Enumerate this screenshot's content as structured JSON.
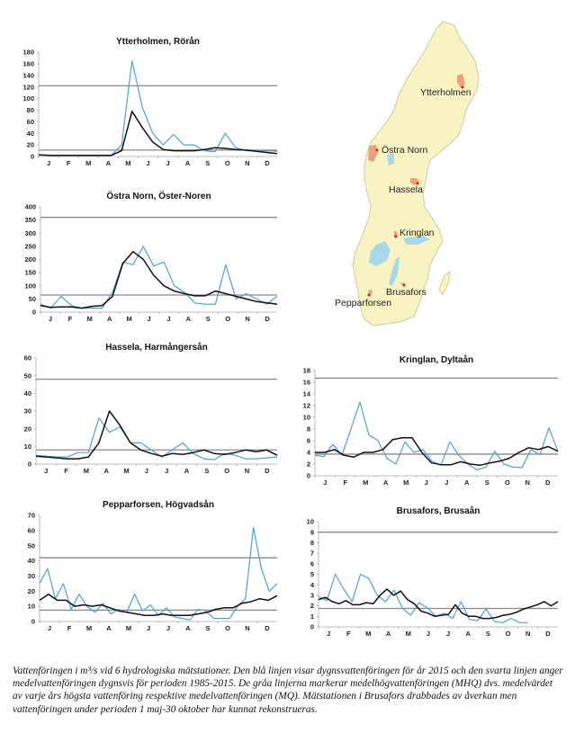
{
  "caption": "Vattenföringen i m³/s vid 6 hydrologiska mätstationer. Den blå linjen visar dygnsvattenföringen för år 2015 och den svarta linjen anger medelvattenföringen dygnsvis för perioden 1985-2015. De gråa linjerna markerar medelhögvattenföringen (MHQ) dvs. medelvärdet av varje års högsta vattenföring respektive medelvattenföringen (MQ). Mätstationen i Brusafors drabbades av åverkan men vattenföringen under perioden 1 maj-30 oktober har kunnat rekonstrueras.",
  "map": {
    "colors": {
      "land": "#f7f3c2",
      "lake": "#a8d8ea",
      "catchment": "#e9a27c",
      "station": "#cc2222",
      "border": "#cfcaa0"
    },
    "stations": [
      {
        "name": "Ytterholmen"
      },
      {
        "name": "Östra Norn"
      },
      {
        "name": "Hassela"
      },
      {
        "name": "Kringlan"
      },
      {
        "name": "Brusafors"
      },
      {
        "name": "Pepparforsen"
      }
    ]
  },
  "colors": {
    "series_2015": "#4fa3cf",
    "series_mean": "#111111",
    "reference": "#8a8a8a",
    "axis": "#aaaaaa"
  },
  "chart_data": [
    {
      "type": "line",
      "title": "Ytterholmen, Rörån",
      "xlabel": "",
      "ylabel": "m³/s",
      "categories": [
        "J",
        "F",
        "M",
        "A",
        "M",
        "J",
        "J",
        "A",
        "S",
        "O",
        "N",
        "D"
      ],
      "yticks": [
        0,
        20,
        40,
        60,
        80,
        100,
        120,
        140,
        160,
        180
      ],
      "ylim": [
        0,
        180
      ],
      "reference_lines": {
        "MHQ": 122,
        "MQ": 11
      },
      "x_unit": "half-month index (0-23)",
      "series": [
        {
          "name": "2015",
          "values": [
            3,
            2,
            2,
            2,
            2,
            2,
            2,
            2,
            20,
            165,
            85,
            40,
            20,
            38,
            20,
            20,
            10,
            8,
            40,
            15,
            10,
            10,
            10,
            9
          ]
        },
        {
          "name": "Medel 1985-2015",
          "values": [
            3,
            2,
            2,
            2,
            2,
            2,
            2,
            2,
            10,
            78,
            50,
            25,
            12,
            10,
            10,
            10,
            12,
            15,
            14,
            12,
            11,
            9,
            7,
            5
          ]
        }
      ]
    },
    {
      "type": "line",
      "title": "Östra Norn, Öster-Noren",
      "xlabel": "",
      "ylabel": "m³/s",
      "categories": [
        "J",
        "F",
        "M",
        "A",
        "M",
        "J",
        "J",
        "A",
        "S",
        "O",
        "N",
        "D"
      ],
      "yticks": [
        0,
        50,
        100,
        150,
        200,
        250,
        300,
        350,
        400
      ],
      "ylim": [
        0,
        400
      ],
      "reference_lines": {
        "MHQ": 360,
        "MQ": 65
      },
      "series": [
        {
          "name": "2015",
          "values": [
            30,
            15,
            60,
            25,
            15,
            15,
            15,
            75,
            190,
            180,
            250,
            175,
            190,
            100,
            75,
            35,
            30,
            30,
            180,
            50,
            70,
            50,
            30,
            60
          ]
        },
        {
          "name": "Medel 1985-2015",
          "values": [
            25,
            18,
            20,
            20,
            15,
            22,
            25,
            60,
            185,
            230,
            200,
            140,
            100,
            80,
            70,
            62,
            62,
            80,
            70,
            60,
            50,
            40,
            35,
            30
          ]
        }
      ]
    },
    {
      "type": "line",
      "title": "Hassela, Harmångersån",
      "xlabel": "",
      "ylabel": "m³/s",
      "categories": [
        "J",
        "F",
        "M",
        "A",
        "M",
        "J",
        "J",
        "A",
        "S",
        "O",
        "N",
        "D"
      ],
      "yticks": [
        0,
        10,
        20,
        30,
        40,
        50,
        60
      ],
      "ylim": [
        0,
        60
      ],
      "reference_lines": {
        "MHQ": 48,
        "MQ": 8
      },
      "series": [
        {
          "name": "2015",
          "values": [
            5,
            4.5,
            4,
            4,
            6.5,
            6.5,
            26,
            18,
            21,
            12,
            12,
            8,
            4,
            8,
            12,
            6,
            3,
            2.5,
            6,
            5,
            3,
            3,
            3.5,
            4
          ]
        },
        {
          "name": "Medel 1985-2015",
          "values": [
            4.5,
            4,
            3.5,
            3,
            3,
            4,
            12,
            30,
            22,
            12,
            8,
            6,
            4.5,
            6,
            5.5,
            6.5,
            8,
            6,
            5.5,
            6.5,
            8,
            7,
            8,
            5
          ]
        }
      ]
    },
    {
      "type": "line",
      "title": "Kringlan, Dyltaån",
      "xlabel": "",
      "ylabel": "m³/s",
      "categories": [
        "J",
        "F",
        "M",
        "A",
        "M",
        "J",
        "J",
        "A",
        "S",
        "O",
        "N",
        "D"
      ],
      "yticks": [
        0,
        2,
        4,
        6,
        8,
        10,
        12,
        14,
        16,
        18
      ],
      "ylim": [
        0,
        18
      ],
      "reference_lines": {
        "MHQ": 16.7,
        "MQ": 3.7
      },
      "series": [
        {
          "name": "2015",
          "values": [
            3.5,
            3.3,
            5.4,
            3.5,
            8,
            12.6,
            7,
            6,
            3,
            2,
            5.8,
            4,
            4.5,
            2.5,
            1.8,
            5.8,
            3.5,
            2,
            1,
            1.5,
            4.2,
            2,
            1.5,
            1.4,
            4.5,
            3.6,
            8.2,
            4.2
          ]
        },
        {
          "name": "Medel 1985-2015",
          "values": [
            4,
            4,
            4.5,
            3.5,
            3.2,
            4,
            4,
            4.5,
            6.2,
            6.5,
            6.5,
            4,
            2.2,
            1.9,
            1.9,
            2.4,
            2.0,
            1.8,
            2.2,
            2.5,
            3,
            4,
            4.8,
            4.5,
            5,
            4.2
          ]
        }
      ]
    },
    {
      "type": "line",
      "title": "Pepparforsen, Högvadsån",
      "xlabel": "",
      "ylabel": "m³/s",
      "categories": [
        "J",
        "F",
        "M",
        "A",
        "M",
        "J",
        "J",
        "A",
        "S",
        "O",
        "N",
        "D"
      ],
      "yticks": [
        0,
        10,
        20,
        30,
        40,
        50,
        60,
        70
      ],
      "ylim": [
        0,
        70
      ],
      "reference_lines": {
        "MHQ": 42,
        "MQ": 7.5
      },
      "series": [
        {
          "name": "2015",
          "values": [
            25,
            35,
            15,
            25,
            8,
            18,
            10,
            6,
            12,
            5,
            8,
            6,
            18,
            7,
            11,
            4,
            9,
            3,
            2,
            1,
            8,
            7,
            2,
            2,
            2,
            10,
            15,
            62,
            35,
            20,
            25
          ]
        },
        {
          "name": "Medel 1985-2015",
          "values": [
            14,
            18,
            14,
            14,
            10,
            11,
            10,
            11,
            9,
            7,
            6,
            5,
            4,
            4,
            5,
            4,
            4,
            4,
            5,
            6,
            8,
            9,
            9,
            12,
            13,
            15,
            14,
            17
          ]
        }
      ]
    },
    {
      "type": "line",
      "title": "Brusafors, Brusaån",
      "xlabel": "",
      "ylabel": "m³/s",
      "categories": [
        "J",
        "F",
        "M",
        "A",
        "M",
        "J",
        "J",
        "A",
        "S",
        "O",
        "N",
        "D"
      ],
      "yticks": [
        0,
        1,
        2,
        3,
        4,
        5,
        6,
        7,
        8,
        9,
        10
      ],
      "ylim": [
        0,
        10
      ],
      "reference_lines": {
        "MHQ": 9,
        "MQ": 1.75
      },
      "series": [
        {
          "name": "2015",
          "values": [
            2.9,
            2.5,
            5,
            3.6,
            2.4,
            5,
            4.6,
            3,
            2.4,
            3.5,
            1.8,
            1.1,
            2.3,
            1.8,
            1,
            1.3,
            0.8,
            2.4,
            0.7,
            0.6,
            1.7,
            0.5,
            0.4,
            0.8,
            0.4,
            0.4
          ]
        },
        {
          "name": "Medel 1985-2015",
          "values": [
            2.6,
            2.8,
            2.4,
            2.2,
            2.5,
            2.1,
            2.1,
            2.3,
            2.2,
            3.0,
            3.6,
            3.0,
            3.4,
            2.6,
            2.2,
            1.5,
            1.3,
            1.0,
            1.1,
            1.2,
            2.1,
            1.3,
            1.0,
            1.0,
            0.8,
            0.8,
            0.9,
            1.1,
            1.2,
            1.4,
            1.7,
            1.9,
            2.1,
            2.4,
            2.0,
            2.4
          ]
        }
      ]
    }
  ]
}
